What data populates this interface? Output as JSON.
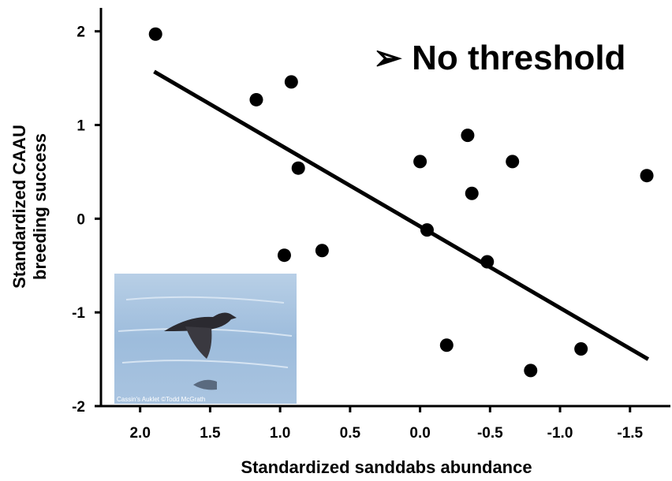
{
  "chart_data": {
    "type": "scatter",
    "annotation": "➢ No threshold",
    "xlabel": "Standardized sanddabs abundance",
    "ylabel": [
      "Standardized CAAU",
      "breeding success"
    ],
    "photo_credit": "Cassin's Auklet ©Todd McGrath",
    "x": [
      1.89,
      1.17,
      0.92,
      0.87,
      0.97,
      0.7,
      0.0,
      -0.34,
      -0.37,
      -0.66,
      -0.05,
      -0.48,
      -0.19,
      -0.79,
      -1.15,
      -1.62
    ],
    "y": [
      1.97,
      1.27,
      1.46,
      0.54,
      -0.39,
      -0.34,
      0.61,
      0.89,
      0.27,
      0.61,
      -0.12,
      -0.46,
      -1.35,
      -1.62,
      -1.39,
      0.46
    ],
    "color": "#000000",
    "trend_line": {
      "x": [
        1.9,
        -1.63
      ],
      "y": [
        1.57,
        -1.5
      ],
      "color": "#000000"
    },
    "xlim": [
      2.28,
      -1.8
    ],
    "ylim": [
      -2,
      2.25
    ],
    "xticks": [
      {
        "value": 2,
        "label": "2.0"
      },
      1.5,
      {
        "value": 1,
        "label": "1.0"
      },
      0.5,
      {
        "value": 0,
        "label": "0.0"
      },
      -0.5,
      {
        "value": -1,
        "label": "-1.0"
      },
      -1.5
    ],
    "yticks": [
      2,
      1,
      0,
      -1,
      -2
    ],
    "grid": false
  }
}
